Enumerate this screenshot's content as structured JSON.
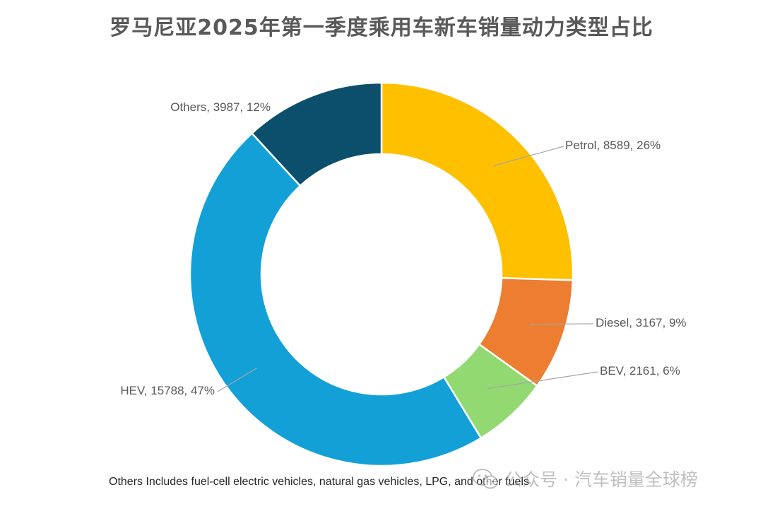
{
  "chart_data": {
    "type": "pie",
    "title": "罗马尼亚2025年第一季度乘用车新车销量动力类型占比",
    "donut": true,
    "slices": [
      {
        "name": "Petrol",
        "value": 8589,
        "percent": "26%",
        "color": "#FFC000",
        "label": "Petrol, 8589, 26%"
      },
      {
        "name": "Diesel",
        "value": 3167,
        "percent": "9%",
        "color": "#ED7D31",
        "label": "Diesel, 3167, 9%"
      },
      {
        "name": "BEV",
        "value": 2161,
        "percent": "6%",
        "color": "#92D971",
        "label": "BEV, 2161, 6%"
      },
      {
        "name": "HEV",
        "value": 15788,
        "percent": "47%",
        "color": "#12A0D7",
        "label": "HEV, 15788, 47%"
      },
      {
        "name": "Others",
        "value": 3987,
        "percent": "12%",
        "color": "#0B4F6C",
        "label": "Others, 3987, 12%"
      }
    ],
    "footnote": "Others Includes fuel-cell electric vehicles, natural gas vehicles, LPG, and other fuels"
  },
  "watermark": {
    "icon": "wechat-icon",
    "text": "公众号 · 汽车销量全球榜"
  }
}
